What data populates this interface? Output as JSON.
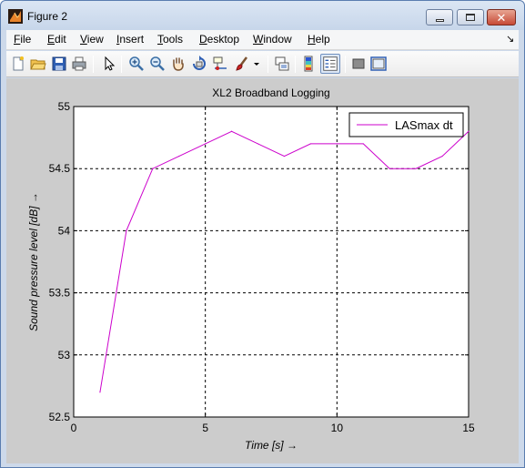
{
  "window": {
    "title": "Figure 2",
    "minimize_icon": "minimize-icon",
    "maximize_icon": "maximize-icon",
    "close_icon": "close-icon"
  },
  "menu": {
    "items": [
      {
        "label": "File",
        "accel": "F",
        "rest": "ile"
      },
      {
        "label": "Edit",
        "accel": "E",
        "rest": "dit"
      },
      {
        "label": "View",
        "accel": "V",
        "rest": "iew"
      },
      {
        "label": "Insert",
        "accel": "I",
        "rest": "nsert"
      },
      {
        "label": "Tools",
        "accel": "T",
        "rest": "ools"
      },
      {
        "label": "Desktop",
        "accel": "D",
        "rest": "esktop"
      },
      {
        "label": "Window",
        "accel": "W",
        "rest": "indow"
      },
      {
        "label": "Help",
        "accel": "H",
        "rest": "elp"
      }
    ],
    "dock_arrow": "↘"
  },
  "toolbar": {
    "icons": [
      "new-figure-icon",
      "open-file-icon",
      "save-icon",
      "print-icon",
      "edit-plot-arrow-icon",
      "zoom-in-icon",
      "zoom-out-icon",
      "pan-hand-icon",
      "rotate-3d-icon",
      "data-cursor-icon",
      "brush-icon",
      "brush-dropdown-icon",
      "link-plot-icon",
      "insert-colorbar-icon",
      "insert-legend-icon",
      "hide-plot-tools-icon",
      "show-plot-tools-icon"
    ]
  },
  "colors": {
    "series": "#cc00cc",
    "canvas": "#cccccc"
  },
  "chart_data": {
    "type": "line",
    "title": "XL2 Broadband Logging",
    "xlabel": "Time [s] →",
    "ylabel": "Sound pressure level [dB] →",
    "xlim": [
      0,
      15
    ],
    "ylim": [
      52.5,
      55
    ],
    "xticks": [
      0,
      5,
      10,
      15
    ],
    "xtick_labels": [
      "0",
      "5",
      "10",
      "15"
    ],
    "yticks": [
      52.5,
      53,
      53.5,
      54,
      54.5,
      55
    ],
    "ytick_labels": [
      "52.5",
      "53",
      "53.5",
      "54",
      "54.5",
      "55"
    ],
    "grid": true,
    "legend": "top-right",
    "series": [
      {
        "name": "LASmax dt",
        "x": [
          1,
          2,
          3,
          4,
          5,
          6,
          7,
          8,
          9,
          10,
          11,
          12,
          13,
          14,
          15
        ],
        "y": [
          52.7,
          54.0,
          54.5,
          54.6,
          54.7,
          54.8,
          54.7,
          54.6,
          54.7,
          54.7,
          54.7,
          54.5,
          54.5,
          54.6,
          54.8
        ]
      }
    ]
  }
}
